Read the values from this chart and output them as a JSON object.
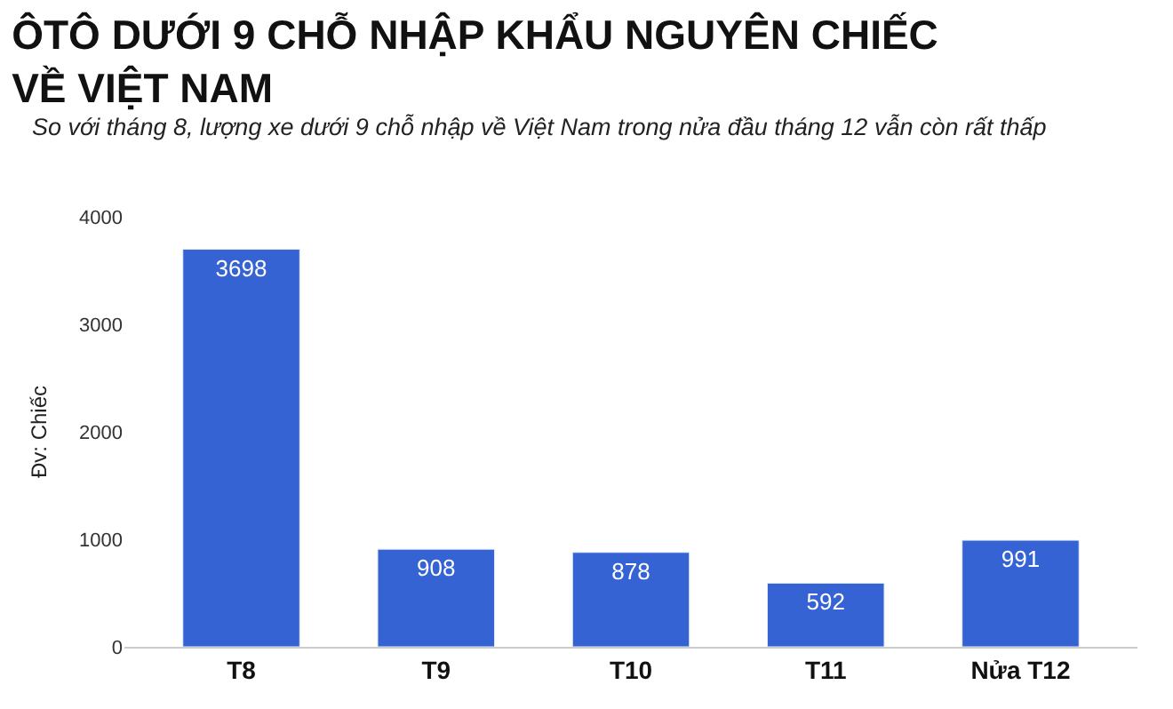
{
  "chart_data": {
    "type": "bar",
    "title": "ÔTÔ DƯỚI 9 CHỖ NHẬP KHẨU NGUYÊN CHIẾC VỀ VIỆT NAM",
    "subtitle": "So với tháng 8, lượng xe dưới 9 chỗ nhập về Việt Nam trong nửa đầu tháng 12 vẫn còn rất thấp",
    "ylabel": "Đv: Chiếc",
    "categories": [
      "T8",
      "T9",
      "T10",
      "T11",
      "Nửa T12"
    ],
    "values": [
      3698,
      908,
      878,
      592,
      991
    ],
    "color": "#3563d4",
    "ylim": [
      0,
      4000
    ],
    "yticks": [
      0,
      1000,
      2000,
      3000,
      4000
    ],
    "legend": false,
    "data_labels": true
  }
}
